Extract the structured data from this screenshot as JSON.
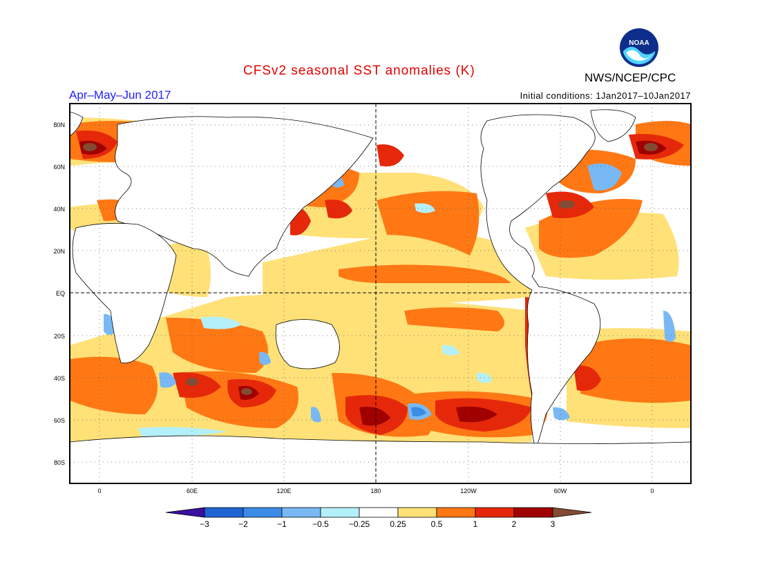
{
  "title": "CFSv2 seasonal SST anomalies (K)",
  "agency": "NWS/NCEP/CPC",
  "logo_text": "NOAA",
  "period": "Apr–May–Jun 2017",
  "initial_conditions": "Initial conditions: 1Jan2017–10Jan2017",
  "map": {
    "lat_labels": [
      "80N",
      "60N",
      "40N",
      "20N",
      "EQ",
      "20S",
      "40S",
      "60S",
      "80S"
    ],
    "lon_labels": [
      "0",
      "60E",
      "120E",
      "180",
      "120W",
      "60W",
      "0"
    ]
  },
  "colorbar": {
    "labels": [
      "−3",
      "−2",
      "−1",
      "−0.5",
      "−0.25",
      "0.25",
      "0.5",
      "1",
      "2",
      "3"
    ],
    "colors": [
      "#3c0f9e",
      "#1e64d2",
      "#3c8ce6",
      "#78b9f5",
      "#b4f0fa",
      "#ffffff",
      "#ffe178",
      "#ff7814",
      "#e6280a",
      "#a00000",
      "#824b32"
    ]
  },
  "colors": {
    "title": "#e00000",
    "period": "#2020ff"
  }
}
